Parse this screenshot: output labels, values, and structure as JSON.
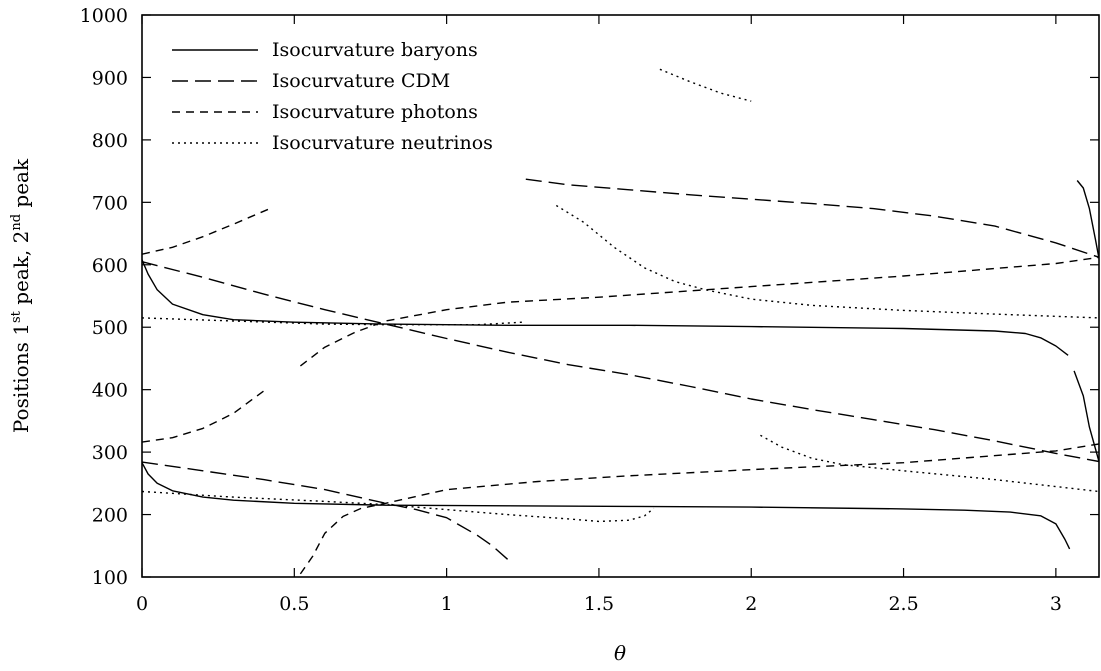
{
  "chart_data": {
    "type": "line",
    "title": "",
    "xlabel": "θ",
    "ylabel": {
      "prefix": "Positions 1",
      "sup1": "st",
      "middle": " peak, 2",
      "sup2": "nd",
      "suffix": " peak"
    },
    "xlim": [
      0,
      3.1416
    ],
    "ylim": [
      100,
      1000
    ],
    "xticks": [
      0,
      0.5,
      1,
      1.5,
      2,
      2.5,
      3
    ],
    "xtick_labels": [
      "0",
      "0.5",
      "1",
      "1.5",
      "2",
      "2.5",
      "3"
    ],
    "yticks": [
      100,
      200,
      300,
      400,
      500,
      600,
      700,
      800,
      900,
      1000
    ],
    "ytick_labels": [
      "100",
      "200",
      "300",
      "400",
      "500",
      "600",
      "700",
      "800",
      "900",
      "1000"
    ],
    "grid": false,
    "legend_position": "top-left",
    "series": [
      {
        "name": "Isocurvature baryons",
        "style": "solid",
        "segments": [
          [
            [
              0,
              608
            ],
            [
              0.02,
              585
            ],
            [
              0.05,
              560
            ],
            [
              0.1,
              537
            ],
            [
              0.2,
              520
            ],
            [
              0.3,
              512
            ],
            [
              0.5,
              508
            ],
            [
              0.8,
              505
            ],
            [
              1.2,
              503
            ],
            [
              1.6,
              503
            ],
            [
              2.0,
              501
            ],
            [
              2.5,
              498
            ],
            [
              2.8,
              494
            ],
            [
              2.9,
              490
            ],
            [
              2.95,
              483
            ],
            [
              3.0,
              470
            ],
            [
              3.04,
              455
            ]
          ],
          [
            [
              3.06,
              430
            ],
            [
              3.09,
              390
            ],
            [
              3.11,
              340
            ],
            [
              3.1416,
              285
            ]
          ],
          [
            [
              3.07,
              735
            ],
            [
              3.09,
              723
            ],
            [
              3.11,
              690
            ],
            [
              3.13,
              640
            ],
            [
              3.1416,
              610
            ]
          ],
          [
            [
              0,
              283
            ],
            [
              0.02,
              265
            ],
            [
              0.05,
              250
            ],
            [
              0.1,
              238
            ],
            [
              0.2,
              228
            ],
            [
              0.3,
              223
            ],
            [
              0.5,
              218
            ],
            [
              0.8,
              215
            ],
            [
              1.2,
              214
            ],
            [
              1.6,
              213
            ],
            [
              2.0,
              212
            ],
            [
              2.5,
              209
            ],
            [
              2.7,
              207
            ],
            [
              2.85,
              204
            ],
            [
              2.95,
              198
            ],
            [
              3.0,
              185
            ],
            [
              3.03,
              160
            ],
            [
              3.045,
              145
            ]
          ]
        ]
      },
      {
        "name": "Isocurvature CDM",
        "style": "long-dash",
        "segments": [
          [
            [
              0,
              605
            ],
            [
              0.2,
              580
            ],
            [
              0.4,
              553
            ],
            [
              0.6,
              528
            ],
            [
              0.8,
              505
            ],
            [
              1.0,
              482
            ],
            [
              1.2,
              460
            ],
            [
              1.4,
              440
            ],
            [
              1.6,
              424
            ],
            [
              1.8,
              405
            ],
            [
              2.0,
              385
            ],
            [
              2.2,
              368
            ],
            [
              2.4,
              352
            ],
            [
              2.6,
              336
            ],
            [
              2.8,
              318
            ],
            [
              3.0,
              298
            ],
            [
              3.1416,
              285
            ]
          ],
          [
            [
              1.26,
              737
            ],
            [
              1.4,
              728
            ],
            [
              1.6,
              720
            ],
            [
              1.8,
              712
            ],
            [
              2.0,
              705
            ],
            [
              2.2,
              698
            ],
            [
              2.4,
              690
            ],
            [
              2.6,
              678
            ],
            [
              2.8,
              662
            ],
            [
              3.0,
              635
            ],
            [
              3.1416,
              612
            ]
          ],
          [
            [
              0,
              284
            ],
            [
              0.2,
              270
            ],
            [
              0.4,
              256
            ],
            [
              0.6,
              240
            ],
            [
              0.8,
              218
            ],
            [
              0.9,
              208
            ],
            [
              1.0,
              195
            ],
            [
              1.1,
              167
            ],
            [
              1.15,
              150
            ],
            [
              1.21,
              124
            ]
          ]
        ]
      },
      {
        "name": "Isocurvature photons",
        "style": "short-dash",
        "segments": [
          [
            [
              0,
              617
            ],
            [
              0.1,
              628
            ],
            [
              0.2,
              645
            ],
            [
              0.3,
              665
            ],
            [
              0.42,
              690
            ]
          ],
          [
            [
              0.52,
              438
            ],
            [
              0.6,
              468
            ],
            [
              0.7,
              492
            ],
            [
              0.8,
              510
            ],
            [
              1.0,
              528
            ],
            [
              1.2,
              540
            ],
            [
              1.5,
              548
            ],
            [
              2.0,
              565
            ],
            [
              2.5,
              582
            ],
            [
              3.0,
              602
            ],
            [
              3.1416,
              612
            ]
          ],
          [
            [
              0,
              316
            ],
            [
              0.1,
              323
            ],
            [
              0.2,
              338
            ],
            [
              0.3,
              362
            ],
            [
              0.4,
              398
            ]
          ],
          [
            [
              0.52,
              105
            ],
            [
              0.56,
              133
            ],
            [
              0.6,
              170
            ],
            [
              0.66,
              197
            ],
            [
              0.72,
              210
            ],
            [
              0.8,
              218
            ],
            [
              1.0,
              240
            ],
            [
              1.3,
              253
            ],
            [
              1.6,
              262
            ],
            [
              2.0,
              272
            ],
            [
              2.5,
              283
            ],
            [
              3.0,
              302
            ],
            [
              3.1416,
              313
            ]
          ]
        ]
      },
      {
        "name": "Isocurvature neutrinos",
        "style": "dotted",
        "segments": [
          [
            [
              0,
              515
            ],
            [
              0.3,
              510
            ],
            [
              0.6,
              505
            ],
            [
              0.8,
              504
            ],
            [
              1.0,
              504
            ],
            [
              1.1,
              504
            ],
            [
              1.25,
              508
            ]
          ],
          [
            [
              1.36,
              695
            ],
            [
              1.45,
              668
            ],
            [
              1.55,
              628
            ],
            [
              1.65,
              595
            ],
            [
              1.75,
              573
            ],
            [
              1.85,
              560
            ],
            [
              2.0,
              545
            ],
            [
              2.2,
              535
            ],
            [
              2.5,
              527
            ],
            [
              2.8,
              521
            ],
            [
              3.1416,
              515
            ]
          ],
          [
            [
              1.7,
              913
            ],
            [
              1.8,
              893
            ],
            [
              1.9,
              875
            ],
            [
              2.0,
              862
            ]
          ],
          [
            [
              0,
              237
            ],
            [
              0.3,
              228
            ],
            [
              0.6,
              221
            ],
            [
              0.8,
              216
            ],
            [
              1.0,
              208
            ],
            [
              1.2,
              200
            ],
            [
              1.4,
              193
            ],
            [
              1.5,
              189
            ],
            [
              1.6,
              191
            ],
            [
              1.65,
              198
            ],
            [
              1.68,
              210
            ]
          ],
          [
            [
              2.03,
              327
            ],
            [
              2.1,
              308
            ],
            [
              2.2,
              290
            ],
            [
              2.3,
              280
            ],
            [
              2.5,
              270
            ],
            [
              2.8,
              256
            ],
            [
              3.1416,
              237
            ]
          ]
        ]
      }
    ]
  }
}
